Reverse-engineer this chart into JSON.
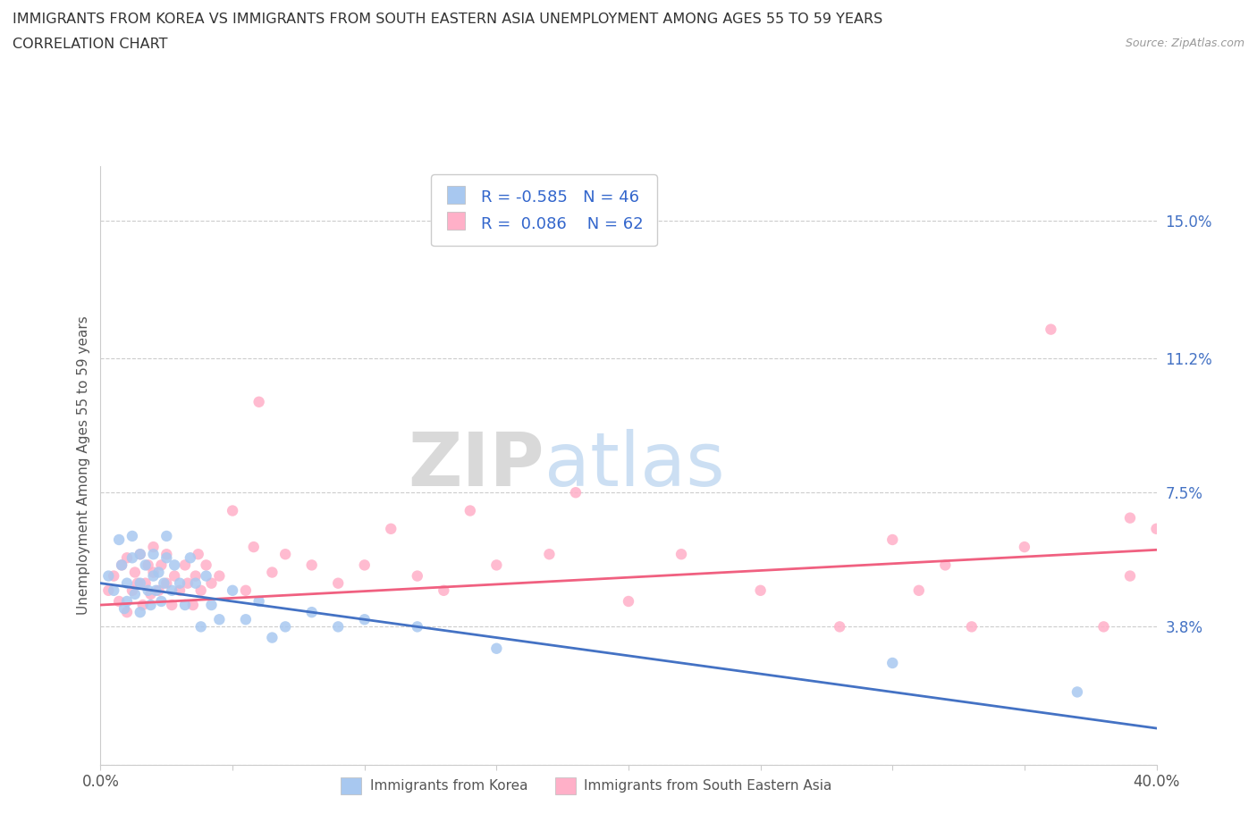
{
  "title_line1": "IMMIGRANTS FROM KOREA VS IMMIGRANTS FROM SOUTH EASTERN ASIA UNEMPLOYMENT AMONG AGES 55 TO 59 YEARS",
  "title_line2": "CORRELATION CHART",
  "source_text": "Source: ZipAtlas.com",
  "ylabel_label": "Unemployment Among Ages 55 to 59 years",
  "x_min": 0.0,
  "x_max": 0.4,
  "y_min": 0.0,
  "y_max": 0.165,
  "x_ticks": [
    0.0,
    0.05,
    0.1,
    0.15,
    0.2,
    0.25,
    0.3,
    0.35,
    0.4
  ],
  "y_ticks": [
    0.0,
    0.038,
    0.075,
    0.112,
    0.15
  ],
  "y_tick_labels": [
    "",
    "3.8%",
    "7.5%",
    "11.2%",
    "15.0%"
  ],
  "legend_korea_label": "Immigrants from Korea",
  "legend_sea_label": "Immigrants from South Eastern Asia",
  "korea_R": "-0.585",
  "korea_N": "46",
  "sea_R": "0.086",
  "sea_N": "62",
  "korea_color": "#a8c8f0",
  "sea_color": "#ffb0c8",
  "korea_line_color": "#4472c4",
  "sea_line_color": "#f06080",
  "watermark_zip": "ZIP",
  "watermark_atlas": "atlas",
  "korea_scatter_x": [
    0.003,
    0.005,
    0.007,
    0.008,
    0.009,
    0.01,
    0.01,
    0.012,
    0.012,
    0.013,
    0.015,
    0.015,
    0.015,
    0.017,
    0.018,
    0.019,
    0.02,
    0.02,
    0.021,
    0.022,
    0.023,
    0.024,
    0.025,
    0.025,
    0.027,
    0.028,
    0.03,
    0.032,
    0.034,
    0.036,
    0.038,
    0.04,
    0.042,
    0.045,
    0.05,
    0.055,
    0.06,
    0.065,
    0.07,
    0.08,
    0.09,
    0.1,
    0.12,
    0.15,
    0.3,
    0.37
  ],
  "korea_scatter_y": [
    0.052,
    0.048,
    0.062,
    0.055,
    0.043,
    0.045,
    0.05,
    0.057,
    0.063,
    0.047,
    0.042,
    0.05,
    0.058,
    0.055,
    0.048,
    0.044,
    0.052,
    0.058,
    0.048,
    0.053,
    0.045,
    0.05,
    0.057,
    0.063,
    0.048,
    0.055,
    0.05,
    0.044,
    0.057,
    0.05,
    0.038,
    0.052,
    0.044,
    0.04,
    0.048,
    0.04,
    0.045,
    0.035,
    0.038,
    0.042,
    0.038,
    0.04,
    0.038,
    0.032,
    0.028,
    0.02
  ],
  "sea_scatter_x": [
    0.003,
    0.005,
    0.007,
    0.008,
    0.01,
    0.01,
    0.012,
    0.013,
    0.014,
    0.015,
    0.016,
    0.017,
    0.018,
    0.019,
    0.02,
    0.02,
    0.022,
    0.023,
    0.025,
    0.025,
    0.027,
    0.028,
    0.03,
    0.032,
    0.033,
    0.035,
    0.036,
    0.037,
    0.038,
    0.04,
    0.042,
    0.045,
    0.05,
    0.055,
    0.058,
    0.06,
    0.065,
    0.07,
    0.08,
    0.09,
    0.1,
    0.11,
    0.12,
    0.13,
    0.14,
    0.15,
    0.17,
    0.18,
    0.2,
    0.22,
    0.25,
    0.28,
    0.3,
    0.31,
    0.32,
    0.33,
    0.35,
    0.36,
    0.38,
    0.39,
    0.39,
    0.4
  ],
  "sea_scatter_y": [
    0.048,
    0.052,
    0.045,
    0.055,
    0.042,
    0.057,
    0.048,
    0.053,
    0.05,
    0.058,
    0.044,
    0.05,
    0.055,
    0.047,
    0.053,
    0.06,
    0.048,
    0.055,
    0.05,
    0.058,
    0.044,
    0.052,
    0.048,
    0.055,
    0.05,
    0.044,
    0.052,
    0.058,
    0.048,
    0.055,
    0.05,
    0.052,
    0.07,
    0.048,
    0.06,
    0.1,
    0.053,
    0.058,
    0.055,
    0.05,
    0.055,
    0.065,
    0.052,
    0.048,
    0.07,
    0.055,
    0.058,
    0.075,
    0.045,
    0.058,
    0.048,
    0.038,
    0.062,
    0.048,
    0.055,
    0.038,
    0.06,
    0.12,
    0.038,
    0.052,
    0.068,
    0.065
  ]
}
